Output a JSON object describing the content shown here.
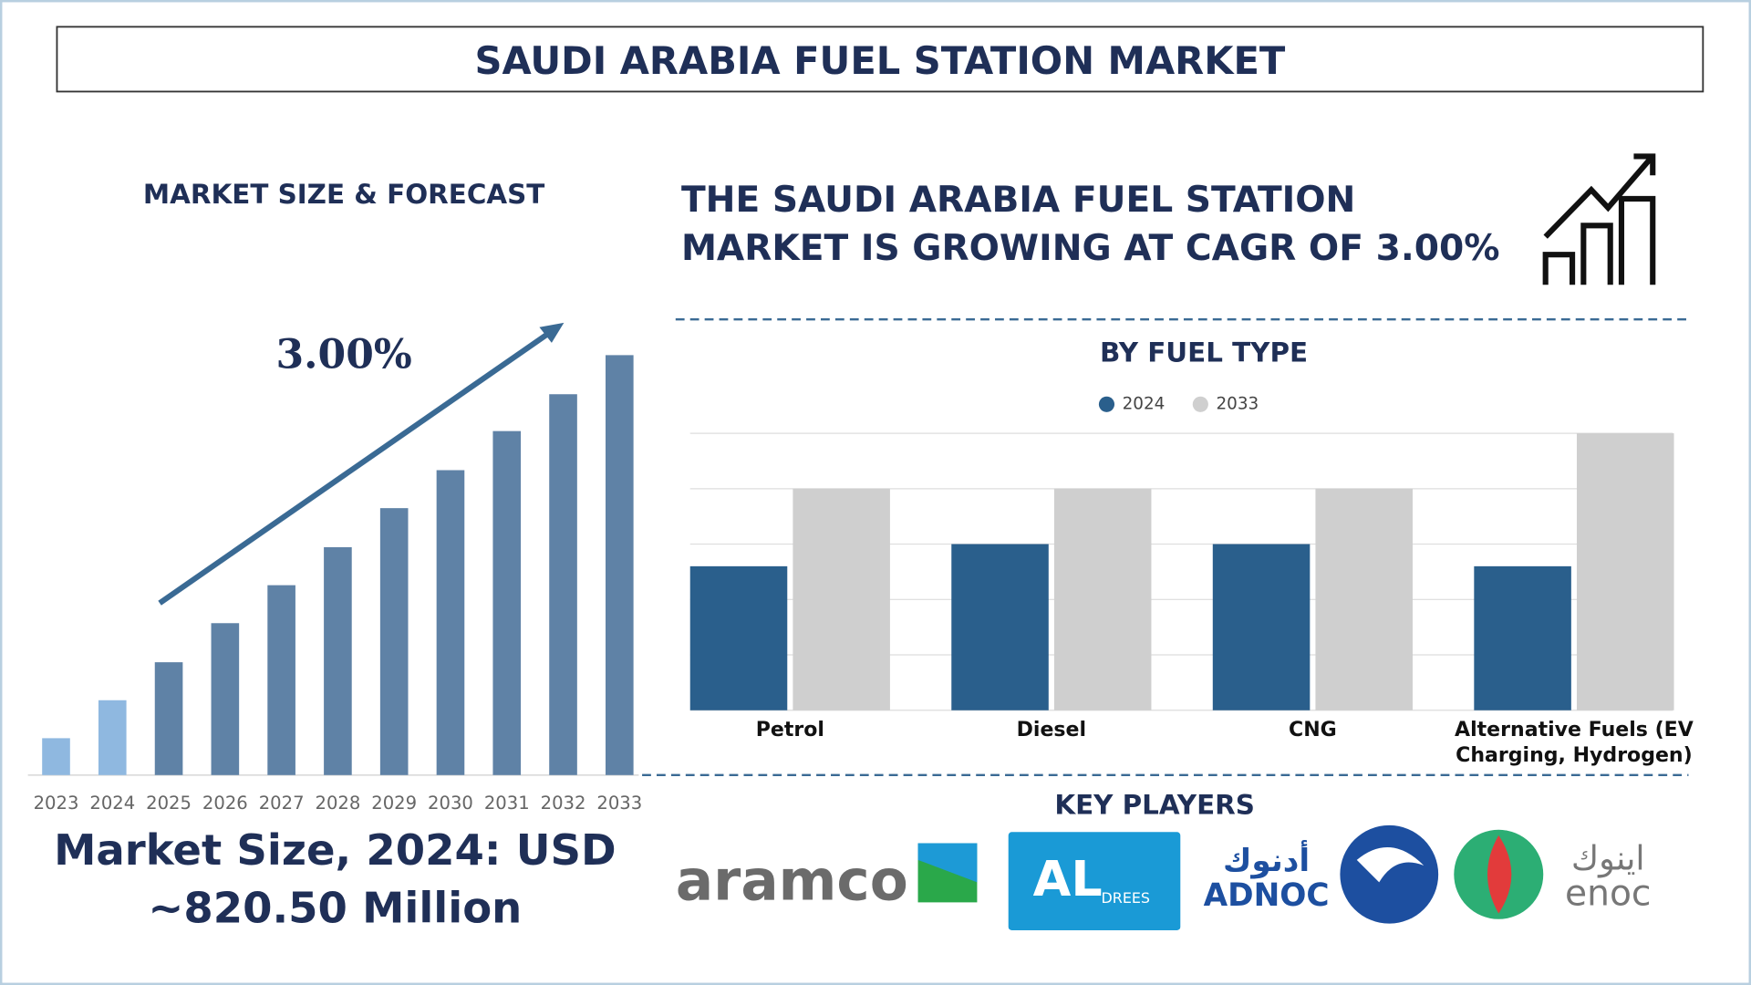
{
  "header": {
    "title": "SAUDI ARABIA FUEL STATION MARKET"
  },
  "forecast": {
    "heading": "MARKET SIZE & FORECAST",
    "cagr": "3.00%",
    "market_size": "Market Size, 2024: USD ~820.50 Million"
  },
  "headline": {
    "line1": "THE SAUDI ARABIA FUEL STATION",
    "line2": "MARKET IS GROWING AT CAGR OF 3.00%"
  },
  "key_players": {
    "heading": "KEY PLAYERS",
    "logos": [
      "aramco",
      "AL",
      "DREES",
      "أدنوك",
      "ADNOC",
      "اينوك",
      "enoc"
    ]
  },
  "chart_data": [
    {
      "type": "bar",
      "categories": [
        "2023",
        "2024",
        "2025",
        "2026",
        "2027",
        "2028",
        "2029",
        "2030",
        "2031",
        "2032",
        "2033"
      ],
      "values": [
        33,
        67,
        101,
        136,
        170,
        204,
        239,
        273,
        308,
        341,
        376
      ],
      "colors": [
        "#8fb8e0",
        "#8fb8e0",
        "#5f82a6",
        "#5f82a6",
        "#5f82a6",
        "#5f82a6",
        "#5f82a6",
        "#5f82a6",
        "#5f82a6",
        "#5f82a6",
        "#5f82a6"
      ]
    },
    {
      "type": "grouped-bar",
      "title": "BY FUEL TYPE",
      "categories": [
        "Petrol",
        "Diesel",
        "CNG",
        "Alternative Fuels (EV Charging, Hydrogen)"
      ],
      "series": [
        {
          "name": "2024",
          "color": "#2a5f8c",
          "values": [
            2.6,
            3,
            3,
            2.6
          ]
        },
        {
          "name": "2033",
          "color": "#cfcfcf",
          "values": [
            4,
            4,
            4,
            5
          ]
        }
      ],
      "ylim": [
        0,
        5
      ],
      "yticks": [
        0,
        1,
        2,
        3,
        4,
        5
      ],
      "grid": true
    }
  ]
}
